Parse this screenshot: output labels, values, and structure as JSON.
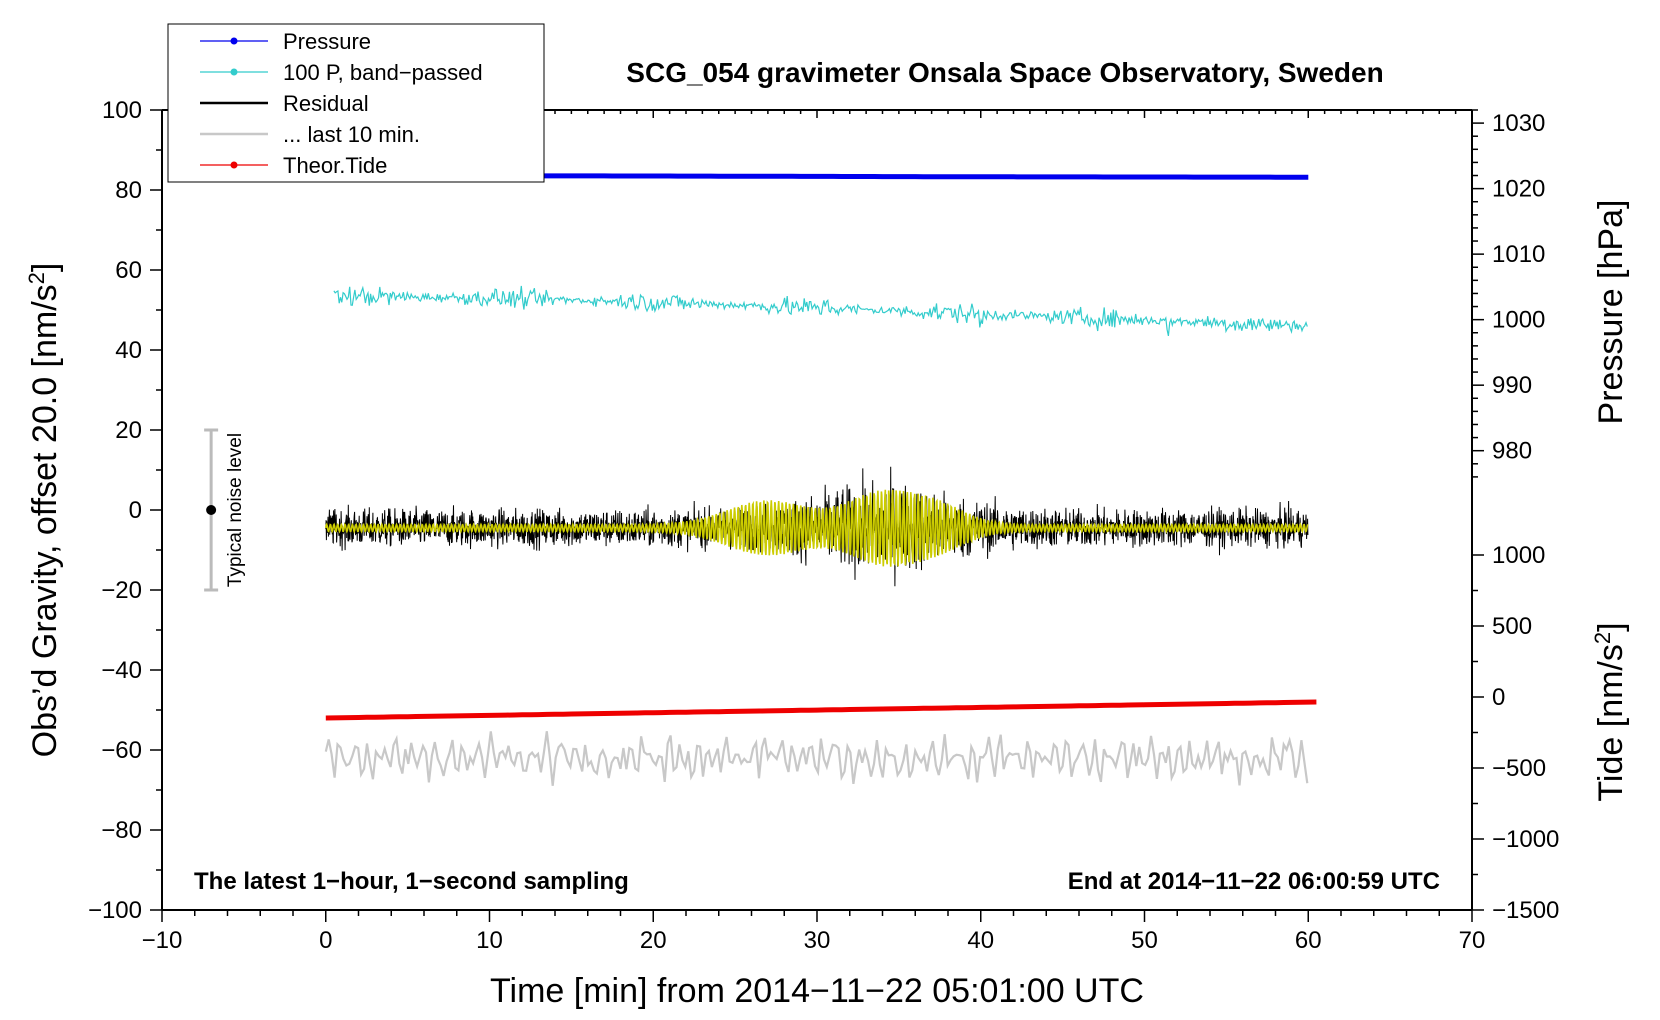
{
  "chart_data": {
    "type": "line",
    "title": "SCG_054 gravimeter Onsala Space Observatory, Sweden",
    "xlabel": "Time [min] from 2014−11−22 05:01:00 UTC",
    "ylabel_left": "Obs’d Gravity, offset 20.0 [nm/s²]",
    "ylabel_right_top": "Pressure [hPa]",
    "ylabel_right_bottom": "Tide [nm/s²]",
    "xlim": [
      -10,
      70
    ],
    "ylim_left": [
      -100,
      100
    ],
    "pressure_axis_range": [
      974,
      1032
    ],
    "tide_axis_range": [
      -1500,
      1000
    ],
    "x_ticks": [
      -10,
      0,
      10,
      20,
      30,
      40,
      50,
      60,
      70
    ],
    "x_tick_labels": [
      "−10",
      "0",
      "10",
      "20",
      "30",
      "40",
      "50",
      "60",
      "70"
    ],
    "y_ticks_left": [
      -100,
      -80,
      -60,
      -40,
      -20,
      0,
      20,
      40,
      60,
      80,
      100
    ],
    "y_tick_labels_left": [
      "−100",
      "−80",
      "−60",
      "−40",
      "−20",
      "0",
      "20",
      "40",
      "60",
      "80",
      "100"
    ],
    "pressure_ticks": [
      980,
      990,
      1000,
      1010,
      1020,
      1030
    ],
    "pressure_tick_labels": [
      "980",
      "990",
      "1000",
      "1010",
      "1020",
      "1030"
    ],
    "tide_ticks": [
      -1500,
      -1000,
      -500,
      0,
      500,
      1000
    ],
    "tide_tick_labels": [
      "−1500",
      "−1000",
      "−500",
      "0",
      "500",
      "1000"
    ],
    "legend": {
      "placement": "top-left",
      "entries": [
        {
          "label": "Pressure",
          "color": "#0000ee",
          "marker": true
        },
        {
          "label": "100 P, band−passed",
          "color": "#33cccc",
          "marker": true
        },
        {
          "label": "Residual",
          "color": "#000000",
          "marker": false
        },
        {
          "label": "... last 10 min.",
          "color": "#c8c8c8",
          "marker": false
        },
        {
          "label": "Theor.Tide",
          "color": "#ee0000",
          "marker": true
        }
      ]
    },
    "series": [
      {
        "name": "Pressure",
        "color": "#0000ee",
        "axis": "left",
        "x": [
          0,
          20,
          40,
          60
        ],
        "values": [
          83.6,
          83.5,
          83.3,
          83.2
        ]
      },
      {
        "name": "100 P, band−passed",
        "color": "#33cccc",
        "axis": "left",
        "x": [
          0,
          10,
          20,
          30,
          40,
          50,
          60
        ],
        "values": [
          53.5,
          53.0,
          52.0,
          50.5,
          49.0,
          47.5,
          46.0
        ]
      },
      {
        "name": "Residual",
        "color": "#000000",
        "axis": "left",
        "x": [
          0,
          60
        ],
        "values": [
          -4.5,
          -4.5
        ]
      },
      {
        "name": "Residual (smoothed)",
        "color": "#cccc00",
        "axis": "left",
        "x": [
          0,
          60
        ],
        "values": [
          -4.5,
          -4.5
        ]
      },
      {
        "name": "... last 10 min.",
        "color": "#c8c8c8",
        "axis": "left",
        "x": [
          0,
          60
        ],
        "values": [
          -62,
          -62
        ]
      },
      {
        "name": "Theor.Tide",
        "color": "#ee0000",
        "axis": "left",
        "x": [
          0,
          60.5
        ],
        "values": [
          -52,
          -48
        ]
      }
    ],
    "noise_bar": {
      "label": "Typical noise level",
      "x": -7,
      "center": 0,
      "low": -20,
      "high": 20
    },
    "annotations": {
      "left": "The latest 1−hour, 1−second sampling",
      "right": "End at 2014−11−22 06:00:59 UTC"
    }
  }
}
